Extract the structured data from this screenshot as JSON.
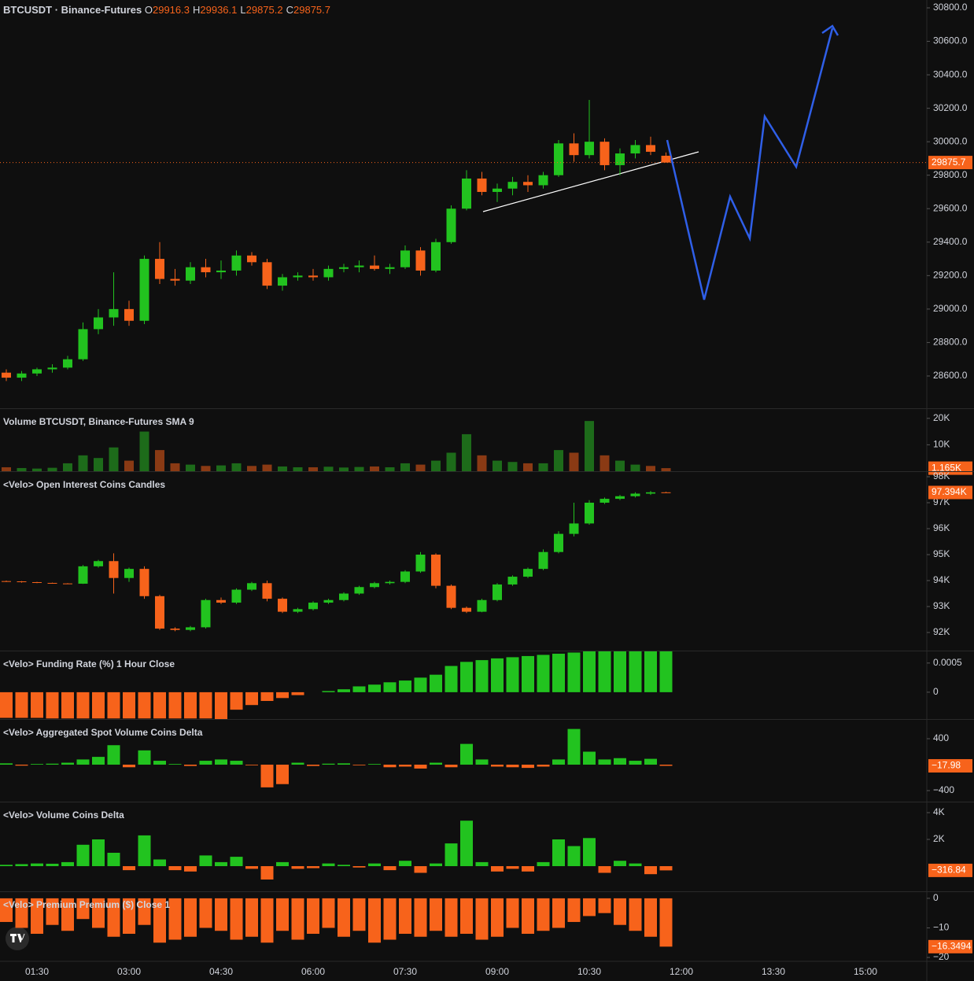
{
  "chart_data": [
    {
      "type": "candlestick",
      "title": "BTCUSDT · Binance-Futures",
      "legend_ohlc": [
        {
          "label": "O",
          "value": 29916.3
        },
        {
          "label": "H",
          "value": 29936.1
        },
        {
          "label": "L",
          "value": 29875.2
        },
        {
          "label": "C",
          "value": 29875.7
        }
      ],
      "up_color": "#22c31f",
      "down_color": "#f7631b",
      "ohlc": [
        [
          28620,
          28640,
          28570,
          28590
        ],
        [
          28590,
          28630,
          28570,
          28615
        ],
        [
          28615,
          28650,
          28600,
          28640
        ],
        [
          28640,
          28670,
          28620,
          28650
        ],
        [
          28650,
          28720,
          28640,
          28700
        ],
        [
          28700,
          28920,
          28690,
          28880
        ],
        [
          28880,
          29000,
          28850,
          28950
        ],
        [
          28950,
          29220,
          28900,
          29000
        ],
        [
          29000,
          29050,
          28900,
          28930
        ],
        [
          28930,
          29320,
          28910,
          29300
        ],
        [
          29300,
          29400,
          29150,
          29180
        ],
        [
          29180,
          29240,
          29140,
          29170
        ],
        [
          29170,
          29280,
          29150,
          29250
        ],
        [
          29250,
          29300,
          29190,
          29220
        ],
        [
          29220,
          29290,
          29180,
          29230
        ],
        [
          29230,
          29350,
          29200,
          29320
        ],
        [
          29320,
          29340,
          29260,
          29280
        ],
        [
          29280,
          29300,
          29120,
          29140
        ],
        [
          29140,
          29210,
          29110,
          29190
        ],
        [
          29190,
          29220,
          29170,
          29200
        ],
        [
          29200,
          29240,
          29170,
          29190
        ],
        [
          29190,
          29260,
          29170,
          29240
        ],
        [
          29240,
          29270,
          29220,
          29250
        ],
        [
          29250,
          29290,
          29220,
          29260
        ],
        [
          29260,
          29320,
          29230,
          29240
        ],
        [
          29240,
          29270,
          29210,
          29250
        ],
        [
          29250,
          29380,
          29240,
          29350
        ],
        [
          29350,
          29370,
          29200,
          29230
        ],
        [
          29230,
          29420,
          29220,
          29400
        ],
        [
          29400,
          29620,
          29390,
          29600
        ],
        [
          29600,
          29830,
          29590,
          29780
        ],
        [
          29780,
          29820,
          29680,
          29700
        ],
        [
          29700,
          29750,
          29640,
          29720
        ],
        [
          29720,
          29790,
          29680,
          29760
        ],
        [
          29760,
          29800,
          29700,
          29740
        ],
        [
          29740,
          29820,
          29720,
          29800
        ],
        [
          29800,
          30010,
          29790,
          29990
        ],
        [
          29990,
          30050,
          29880,
          29920
        ],
        [
          29920,
          30250,
          29900,
          30000
        ],
        [
          30000,
          30020,
          29830,
          29860
        ],
        [
          29860,
          29960,
          29800,
          29930
        ],
        [
          29930,
          30010,
          29900,
          29980
        ],
        [
          29980,
          30030,
          29920,
          29940
        ],
        [
          29916.3,
          29936.1,
          29875.2,
          29875.7
        ]
      ],
      "last_price": 29875.7,
      "ylim": [
        28407,
        30847
      ],
      "yticks": [
        {
          "value": 30800,
          "label": "30800.0"
        },
        {
          "value": 30600,
          "label": "30600.0"
        },
        {
          "value": 30400,
          "label": "30400.0"
        },
        {
          "value": 30200,
          "label": "30200.0"
        },
        {
          "value": 30000,
          "label": "30000.0"
        },
        {
          "value": 29800,
          "label": "29800.0"
        },
        {
          "value": 29600,
          "label": "29600.0"
        },
        {
          "value": 29400,
          "label": "29400.0"
        },
        {
          "value": 29200,
          "label": "29200.0"
        },
        {
          "value": 29000,
          "label": "29000.0"
        },
        {
          "value": 28800,
          "label": "28800.0"
        },
        {
          "value": 28600,
          "label": "28600.0"
        }
      ]
    },
    {
      "type": "volume",
      "title": "Volume BTCUSDT, Binance-Futures SMA 9",
      "up_color": "#1d6b1a",
      "down_color": "#8a3a14",
      "values": [
        1500,
        1200,
        1000,
        1300,
        3000,
        6000,
        5000,
        9000,
        4000,
        15000,
        8000,
        3000,
        2500,
        2000,
        2200,
        3000,
        2000,
        2500,
        1800,
        1500,
        1500,
        1700,
        1400,
        1600,
        1800,
        1500,
        3000,
        2500,
        4000,
        7000,
        14000,
        6000,
        4000,
        3500,
        3000,
        3000,
        8000,
        7000,
        19000,
        6000,
        4000,
        2500,
        2000,
        1165
      ],
      "last_tag": {
        "value": 1165,
        "label": "1.165K"
      },
      "tag_color": "#f7631b",
      "ylim": [
        0,
        23500
      ],
      "yticks": [
        {
          "value": 20000,
          "label": "20K"
        },
        {
          "value": 10000,
          "label": "10K"
        }
      ]
    },
    {
      "type": "candlestick",
      "title": "<Velo> Open Interest Coins Candles",
      "up_color": "#22c31f",
      "down_color": "#f7631b",
      "ohlc": [
        [
          93980,
          94000,
          93950,
          93970
        ],
        [
          93970,
          93980,
          93920,
          93940
        ],
        [
          93940,
          93950,
          93900,
          93910
        ],
        [
          93910,
          93920,
          93880,
          93890
        ],
        [
          93890,
          93900,
          93870,
          93880
        ],
        [
          93880,
          94600,
          93870,
          94550
        ],
        [
          94550,
          94800,
          94500,
          94750
        ],
        [
          94750,
          95050,
          93500,
          94100
        ],
        [
          94100,
          94500,
          93950,
          94450
        ],
        [
          94450,
          94550,
          93300,
          93400
        ],
        [
          93400,
          93450,
          92100,
          92150
        ],
        [
          92150,
          92200,
          92050,
          92100
        ],
        [
          92100,
          92250,
          92050,
          92200
        ],
        [
          92200,
          93300,
          92150,
          93250
        ],
        [
          93250,
          93350,
          93100,
          93150
        ],
        [
          93150,
          93700,
          93100,
          93650
        ],
        [
          93650,
          93950,
          93600,
          93900
        ],
        [
          93900,
          94000,
          93200,
          93300
        ],
        [
          93300,
          93350,
          92750,
          92800
        ],
        [
          92800,
          92950,
          92750,
          92900
        ],
        [
          92900,
          93200,
          92850,
          93150
        ],
        [
          93150,
          93300,
          93100,
          93250
        ],
        [
          93250,
          93550,
          93200,
          93500
        ],
        [
          93500,
          93800,
          93450,
          93750
        ],
        [
          93750,
          93950,
          93700,
          93900
        ],
        [
          93900,
          94000,
          93850,
          93950
        ],
        [
          93950,
          94400,
          93900,
          94350
        ],
        [
          94350,
          95100,
          94300,
          95000
        ],
        [
          95000,
          95050,
          93700,
          93800
        ],
        [
          93800,
          93850,
          92900,
          92950
        ],
        [
          92950,
          93000,
          92750,
          92800
        ],
        [
          92800,
          93300,
          92780,
          93250
        ],
        [
          93250,
          93900,
          93200,
          93850
        ],
        [
          93850,
          94200,
          93800,
          94150
        ],
        [
          94150,
          94500,
          94100,
          94450
        ],
        [
          94450,
          95200,
          94400,
          95100
        ],
        [
          95100,
          95900,
          95050,
          95800
        ],
        [
          95800,
          97000,
          95700,
          96200
        ],
        [
          96200,
          97100,
          96150,
          97000
        ],
        [
          97000,
          97200,
          96950,
          97150
        ],
        [
          97150,
          97300,
          97100,
          97250
        ],
        [
          97250,
          97400,
          97200,
          97350
        ],
        [
          97350,
          97450,
          97300,
          97400
        ],
        [
          97400,
          97420,
          97380,
          97394
        ]
      ],
      "last_tag": {
        "value": 97394,
        "label": "97.394K"
      },
      "tag_color": "#f7631b",
      "ylim": [
        91303,
        98182
      ],
      "yticks": [
        {
          "value": 98000,
          "label": "98K"
        },
        {
          "value": 97000,
          "label": "97K"
        },
        {
          "value": 96000,
          "label": "96K"
        },
        {
          "value": 95000,
          "label": "95K"
        },
        {
          "value": 94000,
          "label": "94K"
        },
        {
          "value": 93000,
          "label": "93K"
        },
        {
          "value": 92000,
          "label": "92K"
        }
      ]
    },
    {
      "type": "histogram",
      "title": "<Velo> Funding Rate (%) 1 Hour Close",
      "up_color": "#22c31f",
      "down_color": "#f7631b",
      "values": [
        -0.00044,
        -0.00044,
        -0.00044,
        -0.00045,
        -0.00045,
        -0.00045,
        -0.00045,
        -0.00045,
        -0.00045,
        -0.00045,
        -0.00045,
        -0.00045,
        -0.00045,
        -0.00045,
        -0.00046,
        -0.0003,
        -0.00022,
        -0.00015,
        -0.0001,
        -5e-05,
        0,
        2e-05,
        5e-05,
        0.0001,
        0.00013,
        0.00017,
        0.0002,
        0.00025,
        0.0003,
        0.00045,
        0.00052,
        0.00055,
        0.00058,
        0.0006,
        0.00062,
        0.00064,
        0.00066,
        0.00068,
        0.0007,
        0.0007,
        0.0007,
        0.0007,
        0.0007,
        0.0007
      ],
      "ylim": [
        -0.00046,
        0.0007
      ],
      "yticks": [
        0.0005,
        0
      ]
    },
    {
      "type": "histogram",
      "title": "<Velo> Aggregated Spot Volume Coins Delta",
      "up_color": "#22c31f",
      "down_color": "#f7631b",
      "values": [
        20,
        -15,
        10,
        15,
        30,
        80,
        120,
        300,
        -40,
        220,
        60,
        10,
        -20,
        60,
        80,
        60,
        -10,
        -350,
        -300,
        30,
        -20,
        15,
        20,
        -10,
        10,
        -40,
        -30,
        -60,
        30,
        -40,
        320,
        80,
        -30,
        -40,
        -50,
        -30,
        80,
        550,
        200,
        80,
        100,
        60,
        90,
        -17.98
      ],
      "last_tag": {
        "value": -17.98,
        "label": "−17.98"
      },
      "tag_color": "#f7631b",
      "ylim": [
        -570,
        691
      ],
      "yticks": [
        400,
        {
          "value": -400,
          "label": "−400"
        }
      ]
    },
    {
      "type": "histogram",
      "title": "<Velo> Volume Coins Delta",
      "up_color": "#22c31f",
      "down_color": "#f7631b",
      "values": [
        100,
        150,
        200,
        180,
        300,
        1600,
        2000,
        1000,
        -300,
        2300,
        500,
        -300,
        -400,
        800,
        300,
        700,
        -200,
        -1000,
        300,
        -200,
        -150,
        200,
        100,
        -100,
        200,
        -300,
        400,
        -500,
        200,
        1700,
        3400,
        300,
        -400,
        -200,
        -400,
        300,
        2000,
        1500,
        2100,
        -500,
        400,
        200,
        -600,
        -316.84
      ],
      "last_tag": {
        "value": -316.84,
        "label": "−316.84"
      },
      "tag_color": "#f7631b",
      "ylim": [
        -1882,
        4765
      ],
      "yticks": [
        {
          "value": 4000,
          "label": "4K"
        },
        {
          "value": 2000,
          "label": "2K"
        }
      ]
    },
    {
      "type": "histogram",
      "title": "<Velo> Premium Premium ($) Close 1",
      "up_color": "#22c31f",
      "down_color": "#f7631b",
      "values": [
        -8,
        -10,
        -12,
        -9,
        -11,
        -7,
        -10,
        -13,
        -12,
        -9,
        -15,
        -14,
        -13,
        -10,
        -11,
        -14,
        -13,
        -15,
        -11,
        -14,
        -12,
        -10,
        -13,
        -11,
        -15,
        -14,
        -12,
        -13,
        -11,
        -13,
        -12,
        -14,
        -13,
        -10,
        -12,
        -11,
        -10,
        -8,
        -6,
        -5,
        -9,
        -11,
        -13,
        -16.3494
      ],
      "last_tag": {
        "value": -16.3494,
        "label": "−16.3494"
      },
      "tag_color": "#f7631b",
      "ylim": [
        -21.05,
        2.1
      ],
      "yticks": [
        0,
        {
          "value": -10,
          "label": "−10"
        },
        {
          "value": -20,
          "label": "−20"
        }
      ],
      "xticks": [
        "01:30",
        "03:00",
        "04:30",
        "06:00",
        "07:30",
        "09:00",
        "10:30",
        "12:00",
        "13:30",
        "15:00"
      ]
    }
  ]
}
